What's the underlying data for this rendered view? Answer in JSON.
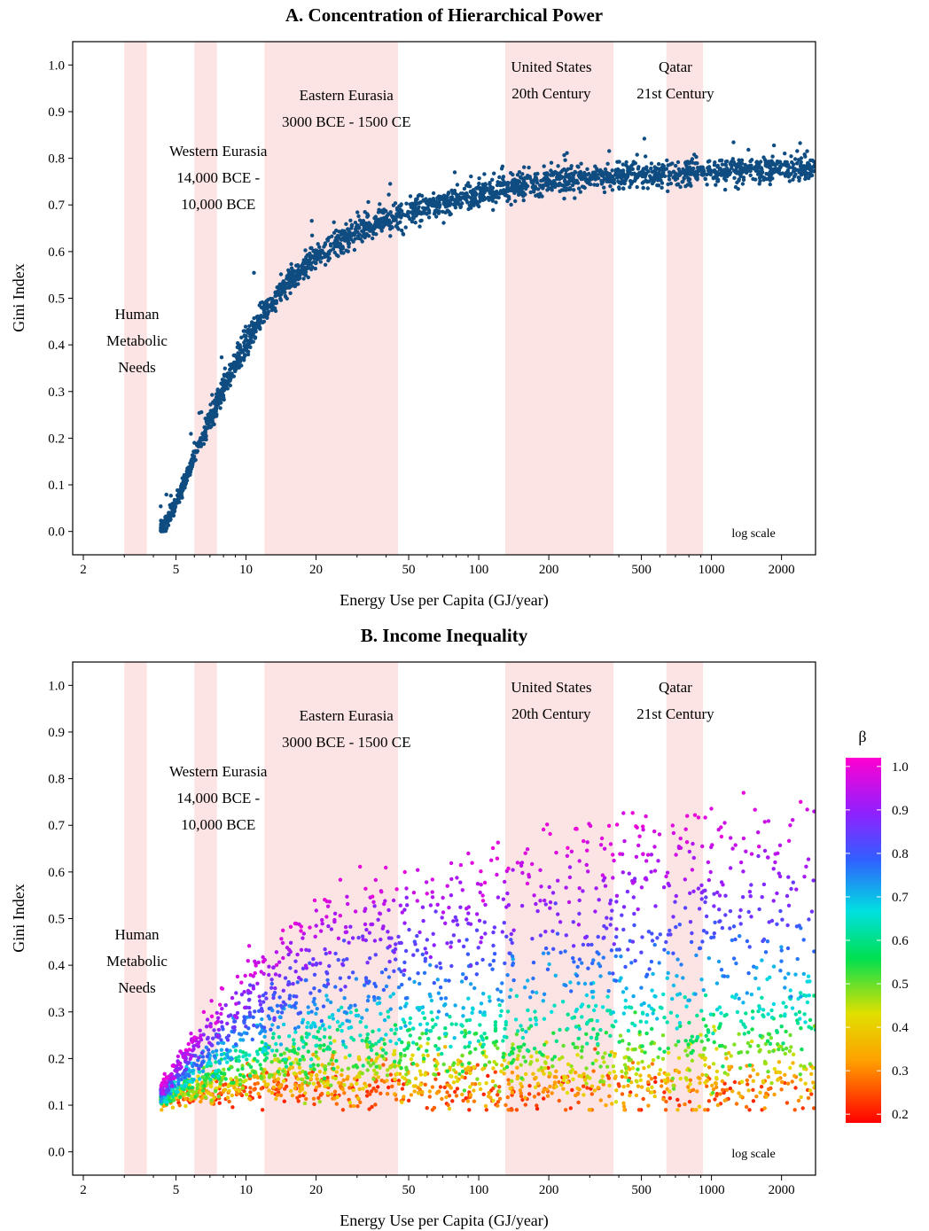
{
  "chart_data": [
    {
      "type": "scatter",
      "title": "A.  Concentration of Hierarchical Power",
      "xlabel": "Energy Use per Capita (GJ/year)",
      "ylabel": "Gini Index",
      "x_scale": "log",
      "xlim": [
        1.8,
        2800
      ],
      "ylim": [
        -0.05,
        1.05
      ],
      "x_ticks": [
        2,
        5,
        10,
        20,
        50,
        100,
        200,
        500,
        1000,
        2000
      ],
      "x_tick_labels": [
        "2",
        "5",
        "10",
        "20",
        "50",
        "100",
        "200",
        "500",
        "1000",
        "2000"
      ],
      "y_ticks": [
        0.0,
        0.1,
        0.2,
        0.3,
        0.4,
        0.5,
        0.6,
        0.7,
        0.8,
        0.9,
        1.0
      ],
      "y_tick_labels": [
        "0.0",
        "0.1",
        "0.2",
        "0.3",
        "0.4",
        "0.5",
        "0.6",
        "0.7",
        "0.8",
        "0.9",
        "1.0"
      ],
      "scale_note": "log scale",
      "point_color": "#0f4c81",
      "grid": false,
      "regions": [
        {
          "x_range": [
            3.0,
            3.75
          ],
          "label_lines": [
            "Human",
            "Metabolic",
            "Needs"
          ],
          "label_x": 3.4,
          "label_y": 0.455
        },
        {
          "x_range": [
            6.0,
            7.5
          ],
          "label_lines": [
            "Western Eurasia",
            "14,000 BCE -",
            "10,000 BCE"
          ],
          "label_x": 7.6,
          "label_y": 0.805
        },
        {
          "x_range": [
            12,
            45
          ],
          "label_lines": [
            "Eastern Eurasia",
            "3000 BCE - 1500 CE"
          ],
          "label_x": 27,
          "label_y": 0.925
        },
        {
          "x_range": [
            130,
            380
          ],
          "label_lines": [
            "United States",
            "20th Century"
          ],
          "label_x": 205,
          "label_y": 0.985
        },
        {
          "x_range": [
            640,
            920
          ],
          "label_lines": [
            "Qatar",
            "21st Century"
          ],
          "label_x": 700,
          "label_y": 0.985
        }
      ],
      "series": [
        {
          "description": "simulated societies; Gini index of hierarchical power vs energy use",
          "trend_x": [
            4.3,
            5,
            6,
            7,
            8,
            10,
            12,
            15,
            20,
            30,
            50,
            100,
            200,
            500,
            1000,
            2800
          ],
          "trend_y": [
            0.0,
            0.06,
            0.16,
            0.24,
            0.31,
            0.4,
            0.47,
            0.53,
            0.59,
            0.645,
            0.685,
            0.725,
            0.75,
            0.765,
            0.772,
            0.78
          ],
          "spread": 0.014
        }
      ]
    },
    {
      "type": "scatter",
      "title": "B.  Income Inequality",
      "xlabel": "Energy Use per Capita (GJ/year)",
      "ylabel": "Gini Index",
      "x_scale": "log",
      "xlim": [
        1.8,
        2800
      ],
      "ylim": [
        -0.05,
        1.05
      ],
      "x_ticks": [
        2,
        5,
        10,
        20,
        50,
        100,
        200,
        500,
        1000,
        2000
      ],
      "x_tick_labels": [
        "2",
        "5",
        "10",
        "20",
        "50",
        "100",
        "200",
        "500",
        "1000",
        "2000"
      ],
      "y_ticks": [
        0.0,
        0.1,
        0.2,
        0.3,
        0.4,
        0.5,
        0.6,
        0.7,
        0.8,
        0.9,
        1.0
      ],
      "y_tick_labels": [
        "0.0",
        "0.1",
        "0.2",
        "0.3",
        "0.4",
        "0.5",
        "0.6",
        "0.7",
        "0.8",
        "0.9",
        "1.0"
      ],
      "scale_note": "log scale",
      "grid": false,
      "regions": [
        {
          "x_range": [
            3.0,
            3.75
          ],
          "label_lines": [
            "Human",
            "Metabolic",
            "Needs"
          ],
          "label_x": 3.4,
          "label_y": 0.455
        },
        {
          "x_range": [
            6.0,
            7.5
          ],
          "label_lines": [
            "Western Eurasia",
            "14,000 BCE -",
            "10,000 BCE"
          ],
          "label_x": 7.6,
          "label_y": 0.805
        },
        {
          "x_range": [
            12,
            45
          ],
          "label_lines": [
            "Eastern Eurasia",
            "3000 BCE - 1500 CE"
          ],
          "label_x": 27,
          "label_y": 0.925
        },
        {
          "x_range": [
            130,
            380
          ],
          "label_lines": [
            "United States",
            "20th Century"
          ],
          "label_x": 205,
          "label_y": 0.985
        },
        {
          "x_range": [
            640,
            920
          ],
          "label_lines": [
            "Qatar",
            "21st Century"
          ],
          "label_x": 700,
          "label_y": 0.985
        }
      ],
      "color_variable": "β",
      "colorbar": {
        "title": "β",
        "range": [
          0.18,
          1.02
        ],
        "ticks": [
          0.2,
          0.3,
          0.4,
          0.5,
          0.6,
          0.7,
          0.8,
          0.9,
          1.0
        ],
        "tick_labels": [
          "0.2",
          "0.3",
          "0.4",
          "0.5",
          "0.6",
          "0.7",
          "0.8",
          "0.9",
          "1.0"
        ],
        "colormap": "rainbow (red → yellow → green → cyan → blue → purple → magenta)"
      },
      "series": [
        {
          "description": "simulated societies; income Gini vs energy use, colored by β",
          "start_x": 4.3,
          "start_gini": 0.11,
          "high_beta_ceiling": 0.76,
          "low_beta_floor": 0.175
        }
      ]
    }
  ]
}
